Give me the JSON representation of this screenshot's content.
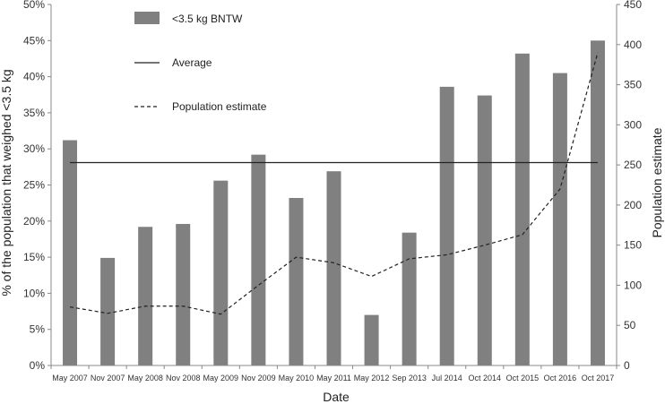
{
  "chart_data": {
    "type": "bar",
    "title": "",
    "xlabel": "Date",
    "ylabel": "% of the population that weighed <3.5 kg",
    "y2label": "Population estimate",
    "categories": [
      "May 2007",
      "Nov 2007",
      "May 2008",
      "Nov 2008",
      "May 2009",
      "Nov 2009",
      "May 2010",
      "May 2011",
      "May 2012",
      "Sep 2013",
      "Jul 2014",
      "Oct 2014",
      "Oct 2015",
      "Oct 2016",
      "Oct 2017"
    ],
    "ylim": [
      0,
      50
    ],
    "yticks": [
      "0%",
      "5%",
      "10%",
      "15%",
      "20%",
      "25%",
      "30%",
      "35%",
      "40%",
      "45%",
      "50%"
    ],
    "y2lim": [
      0,
      450
    ],
    "y2ticks": [
      "0",
      "50",
      "100",
      "150",
      "200",
      "250",
      "300",
      "350",
      "400",
      "450"
    ],
    "series": [
      {
        "name": "<3.5 kg BNTW",
        "type": "bar",
        "axis": "left",
        "color": "#808080",
        "values": [
          31.2,
          14.9,
          19.2,
          19.6,
          25.6,
          29.2,
          23.2,
          26.9,
          7.0,
          18.4,
          38.6,
          37.4,
          43.2,
          40.5,
          45.0
        ]
      },
      {
        "name": "Average",
        "type": "line",
        "axis": "left",
        "style": "solid",
        "color": "#222222",
        "values": [
          28.1,
          28.1,
          28.1,
          28.1,
          28.1,
          28.1,
          28.1,
          28.1,
          28.1,
          28.1,
          28.1,
          28.1,
          28.1,
          28.1,
          28.1
        ]
      },
      {
        "name": "Population estimate",
        "type": "line",
        "axis": "right",
        "style": "dashed",
        "color": "#222222",
        "values": [
          73,
          65,
          74,
          74,
          64,
          100,
          135,
          128,
          111,
          133,
          138,
          150,
          163,
          220,
          390
        ]
      }
    ],
    "legend_position": "top-left",
    "grid": false
  }
}
